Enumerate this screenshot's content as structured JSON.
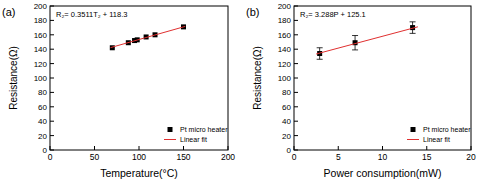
{
  "chart_data": [
    {
      "type": "scatter",
      "title": "(a)",
      "annotation": "R₂= 0.3511T₂ + 118.3",
      "x_label": "Temperature(°C)",
      "y_label": "Resistance(Ω)",
      "xlim": [
        0,
        200
      ],
      "ylim": [
        0,
        200
      ],
      "xticks": [
        0,
        50,
        100,
        150,
        200
      ],
      "yticks": [
        0,
        20,
        40,
        60,
        80,
        100,
        120,
        140,
        160,
        180,
        200
      ],
      "legend": "lower right",
      "series": [
        {
          "name": "Pt micro heater",
          "type": "scatter",
          "marker": "square",
          "color": "#000000",
          "x": [
            70,
            88,
            95,
            98,
            108,
            118,
            150
          ],
          "values": [
            142,
            149,
            152,
            153,
            157,
            160,
            171
          ]
        },
        {
          "name": "Linear fit",
          "type": "line",
          "line_style": "solid",
          "color": "#e03030",
          "x": [
            68,
            152
          ],
          "values": [
            142.2,
            171.7
          ]
        }
      ]
    },
    {
      "type": "scatter",
      "title": "(b)",
      "annotation": "R₂= 3.288P + 125.1",
      "x_label": "Power consumption(mW)",
      "y_label": "Resistance(Ω)",
      "xlim": [
        0,
        20
      ],
      "ylim": [
        0,
        200
      ],
      "xticks": [
        0,
        5,
        10,
        15,
        20
      ],
      "yticks": [
        0,
        20,
        40,
        60,
        80,
        100,
        120,
        140,
        160,
        180,
        200
      ],
      "legend": "lower right",
      "series": [
        {
          "name": "Pt micro heater",
          "type": "scatter",
          "marker": "square",
          "color": "#000000",
          "x": [
            2.9,
            6.9,
            13.4
          ],
          "values": [
            134,
            149,
            170
          ],
          "errors": [
            8,
            10,
            8
          ]
        },
        {
          "name": "Linear fit",
          "type": "line",
          "line_style": "solid",
          "color": "#e03030",
          "x": [
            2.5,
            14
          ],
          "values": [
            133.3,
            171.1
          ]
        }
      ]
    }
  ]
}
